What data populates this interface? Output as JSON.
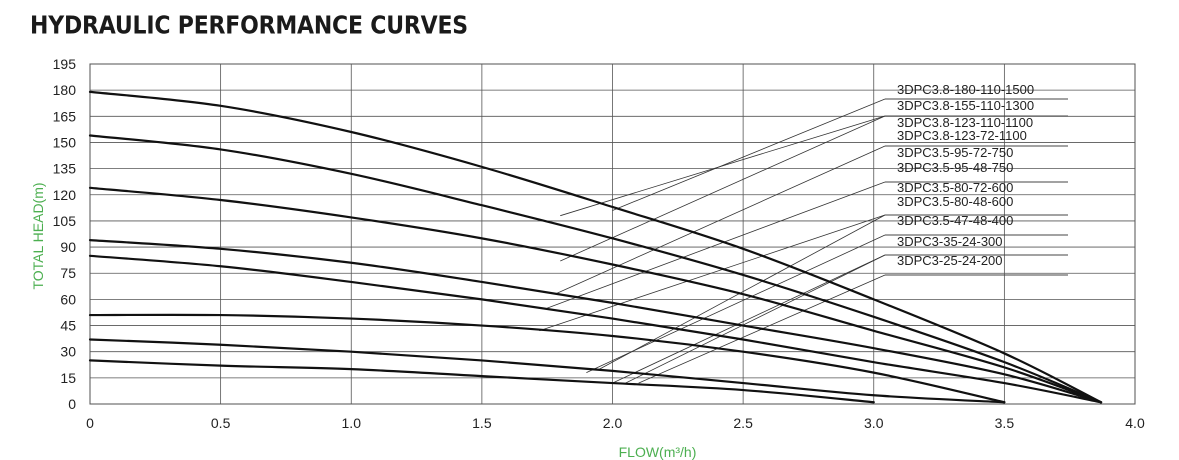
{
  "title": "HYDRAULIC PERFORMANCE CURVES",
  "chart_data": {
    "type": "line",
    "title": "HYDRAULIC PERFORMANCE CURVES",
    "xlabel": "FLOW(m³/h)",
    "ylabel": "TOTAL HEAD(m)",
    "xlim": [
      0,
      4.0
    ],
    "ylim": [
      0,
      195
    ],
    "xticks": [
      "0",
      "0.5",
      "1.0",
      "1.5",
      "2.0",
      "2.5",
      "3.0",
      "3.5",
      "4.0"
    ],
    "yticks": [
      "0",
      "15",
      "30",
      "45",
      "60",
      "75",
      "90",
      "105",
      "120",
      "135",
      "150",
      "165",
      "180",
      "195"
    ],
    "grid": true,
    "curves": [
      {
        "points": [
          [
            0,
            179
          ],
          [
            0.5,
            171
          ],
          [
            1.0,
            156
          ],
          [
            1.5,
            136
          ],
          [
            2.0,
            113
          ],
          [
            2.5,
            89
          ],
          [
            3.0,
            60
          ],
          [
            3.5,
            29
          ],
          [
            3.87,
            1
          ]
        ]
      },
      {
        "points": [
          [
            0,
            154
          ],
          [
            0.5,
            146
          ],
          [
            1.0,
            132
          ],
          [
            1.5,
            114
          ],
          [
            2.0,
            95
          ],
          [
            2.5,
            74
          ],
          [
            3.0,
            50
          ],
          [
            3.5,
            24
          ],
          [
            3.87,
            1
          ]
        ]
      },
      {
        "points": [
          [
            0,
            124
          ],
          [
            0.5,
            117
          ],
          [
            1.0,
            107
          ],
          [
            1.5,
            95
          ],
          [
            2.0,
            80
          ],
          [
            2.5,
            63
          ],
          [
            3.0,
            42
          ],
          [
            3.5,
            21
          ],
          [
            3.87,
            1
          ]
        ]
      },
      {
        "points": [
          [
            0,
            94
          ],
          [
            0.5,
            89
          ],
          [
            1.0,
            81
          ],
          [
            1.5,
            70
          ],
          [
            2.0,
            58
          ],
          [
            2.5,
            45
          ],
          [
            3.0,
            32
          ],
          [
            3.5,
            17
          ],
          [
            3.87,
            1
          ]
        ]
      },
      {
        "points": [
          [
            0,
            85
          ],
          [
            0.5,
            79
          ],
          [
            1.0,
            70
          ],
          [
            1.5,
            60
          ],
          [
            2.0,
            49
          ],
          [
            2.5,
            37
          ],
          [
            3.0,
            24
          ],
          [
            3.5,
            12
          ],
          [
            3.87,
            1
          ]
        ]
      },
      {
        "points": [
          [
            0,
            51
          ],
          [
            0.5,
            51
          ],
          [
            1.0,
            49
          ],
          [
            1.5,
            45
          ],
          [
            2.0,
            39
          ],
          [
            2.5,
            30
          ],
          [
            3.0,
            18
          ],
          [
            3.5,
            1
          ]
        ]
      },
      {
        "points": [
          [
            0,
            37
          ],
          [
            0.5,
            34
          ],
          [
            1.0,
            30
          ],
          [
            1.5,
            25
          ],
          [
            2.0,
            19
          ],
          [
            2.5,
            12
          ],
          [
            3.0,
            5
          ],
          [
            3.5,
            1
          ]
        ]
      },
      {
        "points": [
          [
            0,
            25
          ],
          [
            0.5,
            22
          ],
          [
            1.0,
            20
          ],
          [
            1.5,
            16
          ],
          [
            2.0,
            12
          ],
          [
            2.5,
            8
          ],
          [
            3.0,
            1
          ]
        ]
      }
    ],
    "legend": [
      {
        "label": "3DPC3.8-180-110-1500",
        "pointer": [
          2.0,
          111
        ]
      },
      {
        "label": "3DPC3.8-155-110-1300",
        "pointer": [
          1.8,
          108
        ]
      },
      {
        "label": "3DPC3.8-123-110-1100",
        "pointer": [
          1.8,
          82
        ]
      },
      {
        "label": "3DPC3.8-123-72-1100",
        "pointer": [
          1.78,
          63
        ]
      },
      {
        "label": "3DPC3.5-95-72-750",
        "pointer": [
          1.75,
          55
        ]
      },
      {
        "label": "3DPC3.5-95-48-750",
        "pointer": [
          1.72,
          42
        ]
      },
      {
        "label": "3DPC3.5-80-72-600",
        "pointer": [
          1.95,
          20
        ]
      },
      {
        "label": "3DPC3.5-80-48-600",
        "pointer": [
          1.9,
          18
        ]
      },
      {
        "label": "3DPC3.5-47-48-400",
        "pointer": [
          2.0,
          12
        ]
      },
      {
        "label": "3DPC3-35-24-300",
        "pointer": [
          2.05,
          12
        ]
      },
      {
        "label": "3DPC3-25-24-200",
        "pointer": [
          2.1,
          12
        ]
      }
    ]
  }
}
